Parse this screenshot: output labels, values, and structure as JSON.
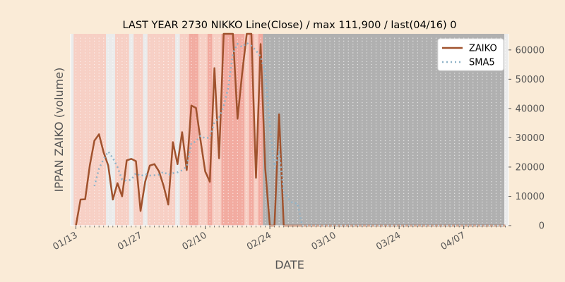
{
  "chart_data": {
    "type": "line",
    "title": "LAST YEAR 2730 NIKKO Line(Close) / max 111,900 / last(04/16) 0",
    "xlabel": "DATE",
    "ylabel": "IPPAN ZAIKO (volume)",
    "x_tick_labels": [
      "01/13",
      "01/27",
      "02/10",
      "02/24",
      "03/10",
      "03/24",
      "04/07"
    ],
    "y_tick_labels": [
      "0",
      "10000",
      "20000",
      "30000",
      "40000",
      "50000",
      "60000"
    ],
    "ylim": [
      0,
      65500
    ],
    "y_axis_side": "right",
    "grid": true,
    "legend_position": "top-right",
    "x": [
      "01/13",
      "01/14",
      "01/15",
      "01/16",
      "01/17",
      "01/18",
      "01/19",
      "01/20",
      "01/21",
      "01/22",
      "01/23",
      "01/24",
      "01/25",
      "01/26",
      "01/27",
      "01/28",
      "01/29",
      "01/30",
      "01/31",
      "02/01",
      "02/02",
      "02/03",
      "02/04",
      "02/05",
      "02/06",
      "02/07",
      "02/08",
      "02/09",
      "02/10",
      "02/11",
      "02/12",
      "02/13",
      "02/14",
      "02/15",
      "02/16",
      "02/17",
      "02/18",
      "02/19",
      "02/20",
      "02/21",
      "02/22",
      "02/23",
      "02/24",
      "02/25",
      "02/26",
      "02/27",
      "02/28",
      "03/01",
      "03/02",
      "03/03",
      "03/04",
      "03/05",
      "03/06",
      "03/07",
      "03/08",
      "03/09",
      "03/10",
      "03/11",
      "03/12",
      "03/13",
      "03/14",
      "03/15",
      "03/16",
      "03/17",
      "03/18",
      "03/19",
      "03/20",
      "03/21",
      "03/22",
      "03/23",
      "03/24",
      "03/25",
      "03/26",
      "03/27",
      "03/28",
      "03/29",
      "03/30",
      "03/31",
      "04/01",
      "04/02",
      "04/03",
      "04/04",
      "04/05",
      "04/06",
      "04/07",
      "04/08",
      "04/09",
      "04/10",
      "04/11",
      "04/12",
      "04/13",
      "04/14",
      "04/15",
      "04/16"
    ],
    "series": [
      {
        "name": "ZAIKO",
        "color": "#a0522d",
        "style": "solid",
        "values": [
          0,
          8900,
          9000,
          20500,
          29000,
          31200,
          25000,
          20500,
          8900,
          14500,
          10000,
          22300,
          22800,
          22000,
          5000,
          15000,
          20500,
          21000,
          18500,
          13500,
          7200,
          28500,
          21000,
          31900,
          19000,
          41000,
          40200,
          29000,
          18500,
          15000,
          53800,
          23000,
          65500,
          65500,
          65500,
          36500,
          52000,
          65500,
          65500,
          16300,
          62000,
          19500,
          0,
          0,
          38000,
          0,
          0,
          0,
          0,
          0,
          0,
          0,
          0,
          0,
          0,
          0,
          0,
          0,
          0,
          0,
          0,
          0,
          0,
          0,
          0,
          0,
          0,
          0,
          0,
          0,
          0,
          0,
          0,
          0,
          0,
          0,
          0,
          0,
          0,
          0,
          0,
          0,
          0,
          0,
          0,
          0,
          0,
          0,
          0,
          0,
          0,
          0,
          0,
          0
        ]
      },
      {
        "name": "SMA5",
        "color": "#8fb3c8",
        "style": "dotted",
        "values": [
          null,
          null,
          null,
          null,
          13500,
          19500,
          22700,
          25300,
          23100,
          20000,
          15700,
          15300,
          15700,
          17900,
          16900,
          17600,
          17100,
          17200,
          17400,
          18400,
          17300,
          17900,
          18200,
          18900,
          20200,
          28200,
          28700,
          30700,
          29800,
          30100,
          35400,
          36800,
          40800,
          47200,
          58900,
          62100,
          61000,
          62400,
          61400,
          59800,
          57700,
          52300,
          34200,
          19600,
          25400,
          11500,
          9300,
          7600,
          7600,
          0,
          0,
          0,
          0,
          0,
          0,
          0,
          0,
          0,
          0,
          0,
          0,
          0,
          0,
          0,
          0,
          0,
          0,
          0,
          0,
          0,
          0,
          0,
          0,
          0,
          0,
          0,
          0,
          0,
          0,
          0,
          0,
          0,
          0,
          0,
          0,
          0,
          0,
          0,
          0,
          0,
          0,
          0,
          0,
          0
        ]
      }
    ],
    "shaded_periods": {
      "pink_days": [
        "01/13",
        "01/14",
        "01/15",
        "01/16",
        "01/17",
        "01/18",
        "01/19",
        "01/22",
        "01/23",
        "01/24",
        "01/26",
        "01/27",
        "01/29",
        "01/30",
        "01/31",
        "02/01",
        "02/02",
        "02/03",
        "02/05",
        "02/06",
        "02/07",
        "02/08",
        "02/09",
        "02/10",
        "02/11",
        "02/12",
        "02/13",
        "02/14",
        "02/15",
        "02/16",
        "02/17",
        "02/18",
        "02/19",
        "02/20",
        "02/21",
        "02/22",
        "02/23",
        "02/24",
        "02/25",
        "02/26"
      ],
      "dark_pink_days": [
        "02/07",
        "02/08",
        "02/11",
        "02/14",
        "02/15",
        "02/16",
        "02/17",
        "02/18",
        "02/20",
        "02/22",
        "02/23",
        "02/24",
        "02/25"
      ],
      "gray_from": "02/23",
      "gray_color": "#b0b0b0"
    }
  }
}
